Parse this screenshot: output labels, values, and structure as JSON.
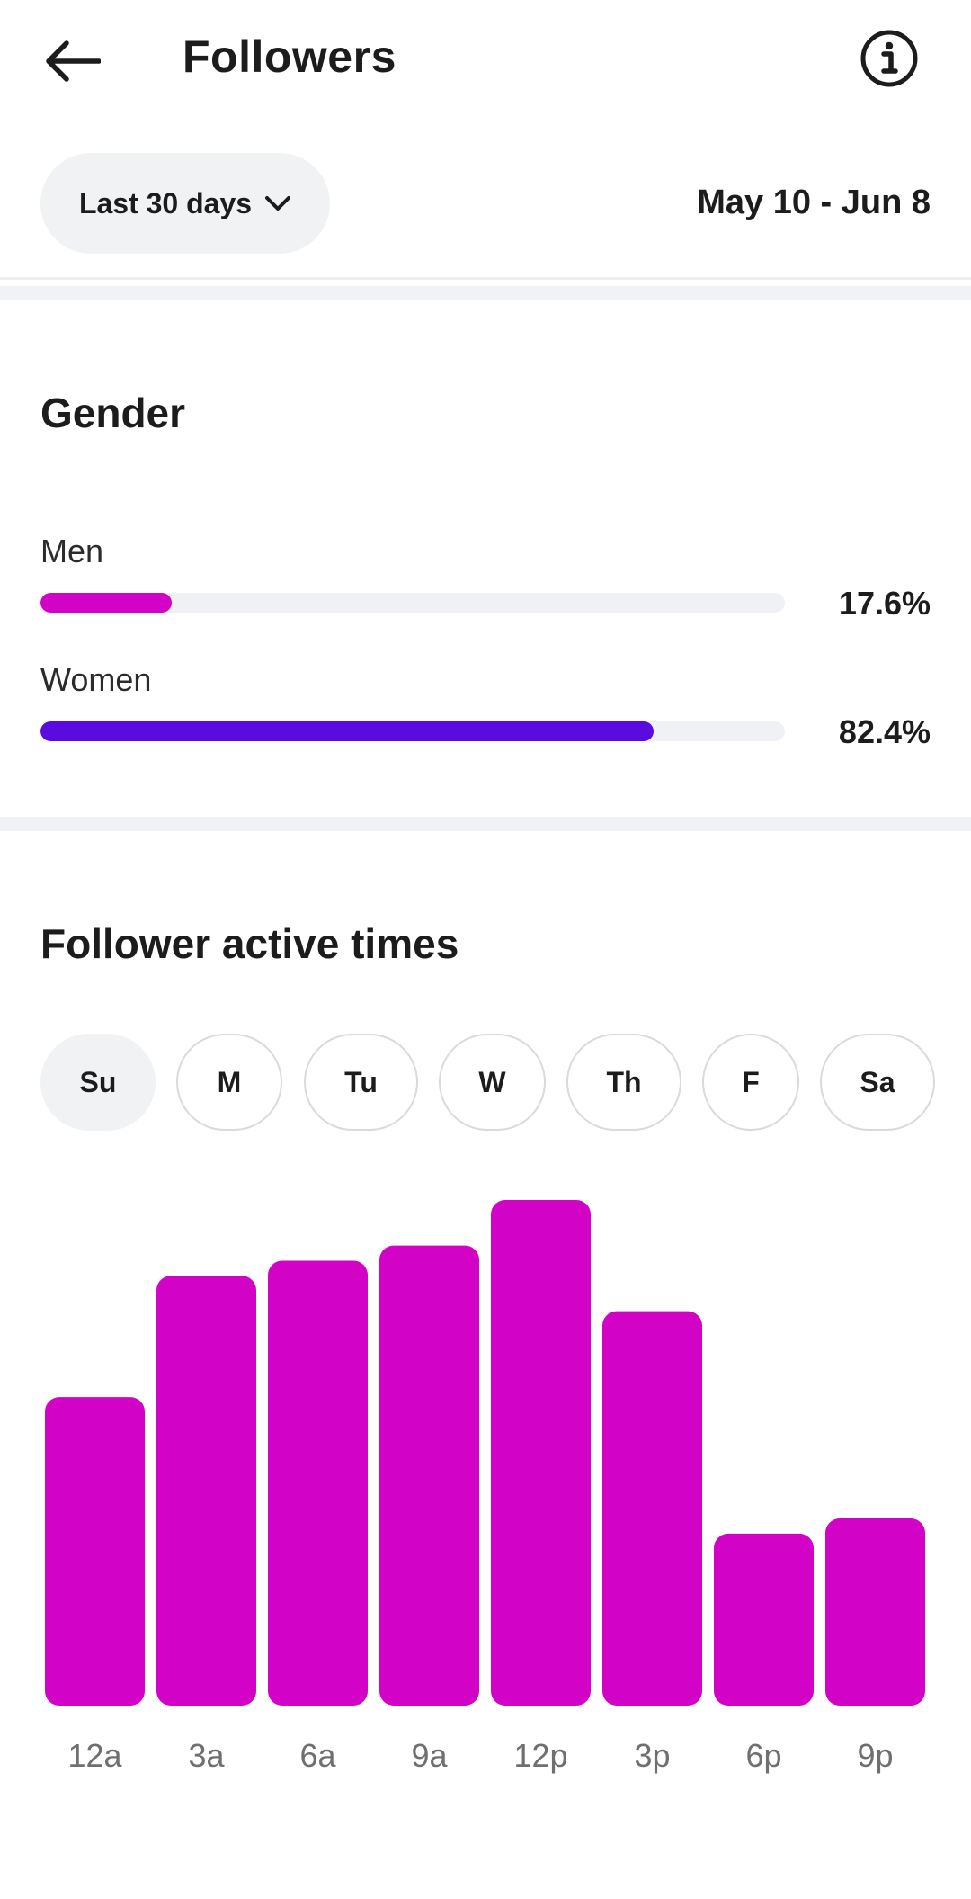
{
  "header": {
    "title": "Followers",
    "back_icon": "arrow-left-icon",
    "info_icon": "info-icon"
  },
  "filter": {
    "range_label": "Last 30 days",
    "range_icon": "chevron-down-icon",
    "date_range": "May 10 - Jun 8"
  },
  "gender": {
    "title": "Gender",
    "items": [
      {
        "label": "Men",
        "percent_text": "17.6%",
        "value": 17.6,
        "color": "#d203c6"
      },
      {
        "label": "Women",
        "percent_text": "82.4%",
        "value": 82.4,
        "color": "#5a0be0"
      }
    ]
  },
  "active_times": {
    "title": "Follower active times",
    "days": [
      "Su",
      "M",
      "Tu",
      "W",
      "Th",
      "F",
      "Sa"
    ],
    "selected_day": "Su"
  },
  "chart_data": {
    "type": "bar",
    "categories": [
      "12a",
      "3a",
      "6a",
      "9a",
      "12p",
      "3p",
      "6p",
      "9p"
    ],
    "values": [
      61,
      85,
      88,
      91,
      100,
      78,
      34,
      37
    ],
    "ylim": [
      0,
      100
    ],
    "color": "#d203c6",
    "grid": false
  }
}
